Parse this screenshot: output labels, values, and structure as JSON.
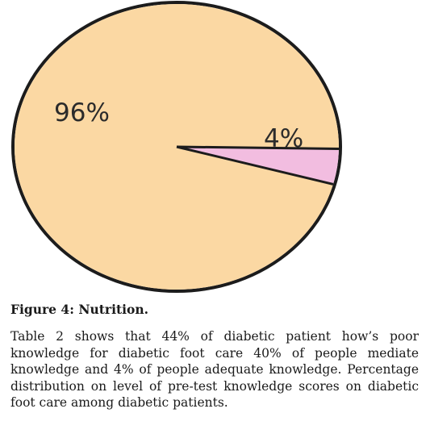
{
  "chart_data": {
    "type": "pie",
    "labels": [
      "96%",
      "4%"
    ],
    "values": [
      96,
      4
    ],
    "colors": [
      "#fbd8a3",
      "#f2bde0"
    ]
  },
  "figure": {
    "caption": "Figure 4: Nutrition.",
    "body": "Table 2 shows that 44% of diabetic patient how’s poor knowledge for diabetic foot care 40% of people mediate knowledge and 4% of people adequate knowledge. Percentage distribution on level of pre-test knowledge scores on diabetic foot care among diabetic patients."
  }
}
